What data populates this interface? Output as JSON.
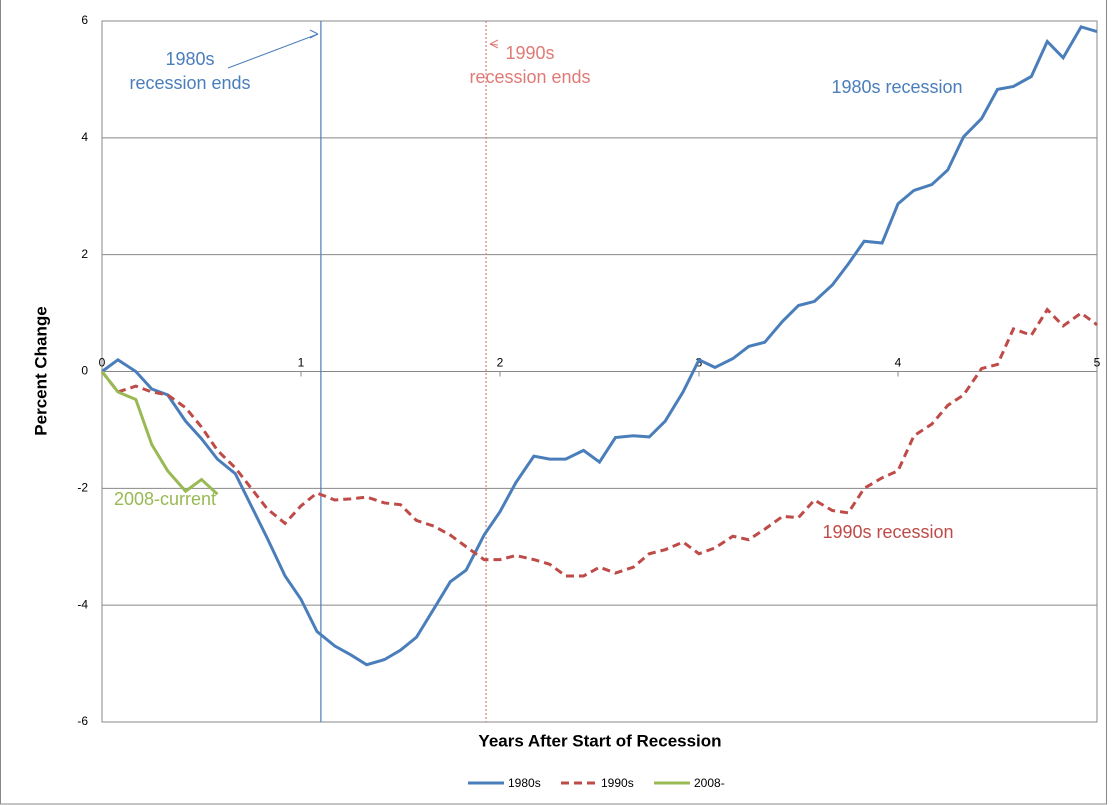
{
  "chart_data": {
    "type": "line",
    "xlabel": "Years After Start of Recession",
    "ylabel": "Percent Change",
    "x": [
      0,
      0.08,
      0.17,
      0.25,
      0.33,
      0.42,
      0.5,
      0.58,
      0.67,
      0.75,
      0.83,
      0.92,
      1,
      1.08,
      1.17,
      1.25,
      1.33,
      1.42,
      1.5,
      1.58,
      1.67,
      1.75,
      1.83,
      1.92,
      2,
      2.08,
      2.17,
      2.25,
      2.33,
      2.42,
      2.5,
      2.58,
      2.67,
      2.75,
      2.83,
      2.92,
      3,
      3.08,
      3.17,
      3.25,
      3.33,
      3.42,
      3.5,
      3.58,
      3.67,
      3.75,
      3.83,
      3.92,
      4,
      4.08,
      4.17,
      4.25,
      4.33,
      4.42,
      4.5,
      4.58,
      4.67,
      4.75,
      4.83,
      4.92,
      5
    ],
    "series": [
      {
        "name": "1980s",
        "color": "#4a7ebb",
        "dash": "solid",
        "values": [
          0,
          0.2,
          0,
          -0.3,
          -0.4,
          -0.85,
          -1.15,
          -1.5,
          -1.75,
          -2.3,
          -2.85,
          -3.5,
          -3.9,
          -4.45,
          -4.7,
          -4.85,
          -5.02,
          -4.93,
          -4.77,
          -4.55,
          -4.05,
          -3.6,
          -3.4,
          -2.8,
          -2.4,
          -1.9,
          -1.45,
          -1.5,
          -1.5,
          -1.35,
          -1.55,
          -1.13,
          -1.1,
          -1.12,
          -0.85,
          -0.35,
          0.2,
          0.07,
          0.22,
          0.43,
          0.5,
          0.86,
          1.13,
          1.2,
          1.48,
          1.84,
          2.23,
          2.2,
          2.87,
          3.1,
          3.2,
          3.45,
          4.02,
          4.33,
          4.83,
          4.88,
          5.05,
          5.65,
          5.37,
          5.9,
          5.82
        ]
      },
      {
        "name": "1990s",
        "color": "#be4b48",
        "dash": "dashed",
        "values": [
          0,
          -0.35,
          -0.25,
          -0.35,
          -0.4,
          -0.62,
          -0.95,
          -1.35,
          -1.65,
          -2.0,
          -2.35,
          -2.6,
          -2.3,
          -2.08,
          -2.2,
          -2.18,
          -2.15,
          -2.25,
          -2.28,
          -2.55,
          -2.65,
          -2.8,
          -3.0,
          -3.22,
          -3.22,
          -3.15,
          -3.22,
          -3.3,
          -3.5,
          -3.5,
          -3.35,
          -3.45,
          -3.35,
          -3.12,
          -3.05,
          -2.92,
          -3.12,
          -3.02,
          -2.82,
          -2.88,
          -2.7,
          -2.48,
          -2.5,
          -2.2,
          -2.38,
          -2.42,
          -2.0,
          -1.82,
          -1.7,
          -1.1,
          -0.9,
          -0.58,
          -0.4,
          0.05,
          0.12,
          0.73,
          0.62,
          1.06,
          0.78,
          1.0,
          0.8
        ]
      },
      {
        "name": "2008-",
        "color": "#98b954",
        "dash": "solid",
        "values": [
          0,
          -0.35,
          -0.48,
          -1.25,
          -1.7,
          -2.05,
          -1.85,
          -2.1,
          null,
          null,
          null,
          null,
          null,
          null,
          null,
          null,
          null,
          null,
          null,
          null,
          null,
          null,
          null,
          null,
          null,
          null,
          null,
          null,
          null,
          null,
          null,
          null,
          null,
          null,
          null,
          null,
          null,
          null,
          null,
          null,
          null,
          null,
          null,
          null,
          null,
          null,
          null,
          null,
          null,
          null,
          null,
          null,
          null,
          null,
          null,
          null,
          null,
          null,
          null,
          null,
          null
        ]
      }
    ],
    "series_labels": [
      "1980s  recession",
      "1990s  recession",
      "2008-current"
    ],
    "vlines": [
      {
        "x": 1.1,
        "color": "#4a7ebb",
        "dash": "solid",
        "label": [
          "1980s",
          "recession ends"
        ]
      },
      {
        "x": 1.93,
        "color": "#e07a76",
        "dash": "dotted",
        "label": [
          "1990s",
          "recession ends"
        ]
      }
    ],
    "xlim": [
      0,
      5
    ],
    "xticks": [
      0,
      1,
      2,
      3,
      4,
      5
    ],
    "ylim": [
      -6,
      6
    ],
    "yticks": [
      -6,
      -4,
      -2,
      0,
      2,
      4,
      6
    ],
    "grid": true,
    "legend": "bottom"
  }
}
